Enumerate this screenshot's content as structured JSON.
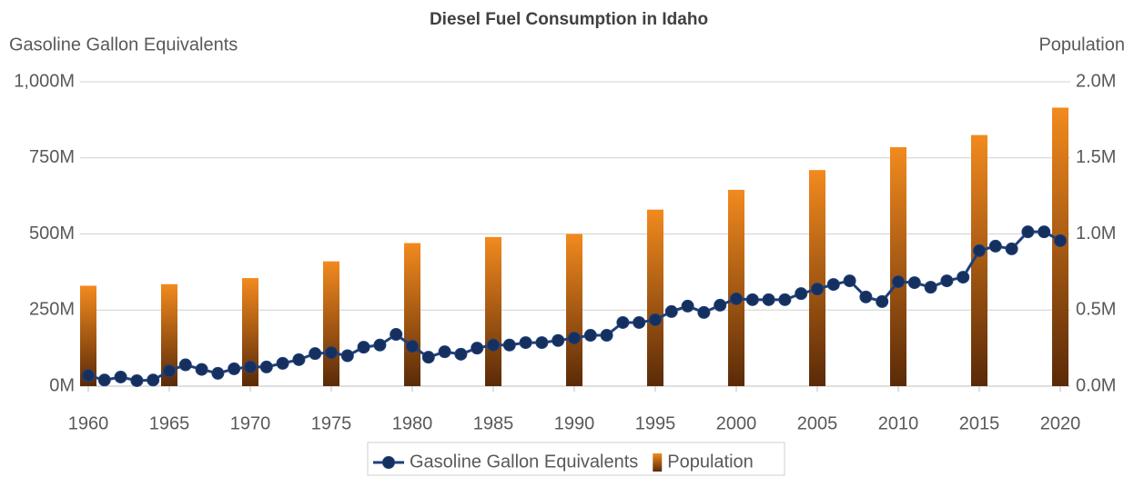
{
  "chart_data": {
    "type": "bar-line",
    "title": "Diesel Fuel Consumption in Idaho",
    "y_label": "Gasoline Gallon Equivalents",
    "y2_label": "Population",
    "x": [
      1960,
      1961,
      1962,
      1963,
      1964,
      1965,
      1966,
      1967,
      1968,
      1969,
      1970,
      1971,
      1972,
      1973,
      1974,
      1975,
      1976,
      1977,
      1978,
      1979,
      1980,
      1981,
      1982,
      1983,
      1984,
      1985,
      1986,
      1987,
      1988,
      1989,
      1990,
      1991,
      1992,
      1993,
      1994,
      1995,
      1996,
      1997,
      1998,
      1999,
      2000,
      2001,
      2002,
      2003,
      2004,
      2005,
      2006,
      2007,
      2008,
      2009,
      2010,
      2011,
      2012,
      2013,
      2014,
      2015,
      2016,
      2017,
      2018,
      2019,
      2020
    ],
    "xlim": [
      1960,
      2020
    ],
    "xticks": [
      1960,
      1965,
      1970,
      1975,
      1980,
      1985,
      1990,
      1995,
      2000,
      2005,
      2010,
      2015,
      2020
    ],
    "ylim": [
      0,
      1000000000
    ],
    "yticks": [
      {
        "value": 0,
        "label": "0M"
      },
      {
        "value": 250000000,
        "label": "250M"
      },
      {
        "value": 500000000,
        "label": "500M"
      },
      {
        "value": 750000000,
        "label": "750M"
      },
      {
        "value": 1000000000,
        "label": "1,000M"
      }
    ],
    "y2lim": [
      0,
      2000000
    ],
    "y2ticks": [
      {
        "value": 0,
        "label": "0.0M"
      },
      {
        "value": 500000,
        "label": "0.5M"
      },
      {
        "value": 1000000,
        "label": "1.0M"
      },
      {
        "value": 1500000,
        "label": "1.5M"
      },
      {
        "value": 2000000,
        "label": "2.0M"
      }
    ],
    "grid": true,
    "series": [
      {
        "name": "Gasoline Gallon Equivalents",
        "type": "line",
        "color": "#1f3f7a",
        "values": [
          35000000,
          20000000,
          30000000,
          18000000,
          20000000,
          50000000,
          70000000,
          55000000,
          42000000,
          57000000,
          63000000,
          63000000,
          75000000,
          87000000,
          107000000,
          110000000,
          100000000,
          128000000,
          135000000,
          170000000,
          131000000,
          95000000,
          113000000,
          105000000,
          125000000,
          135000000,
          135000000,
          143000000,
          143000000,
          150000000,
          158000000,
          167000000,
          167000000,
          209000000,
          209000000,
          218000000,
          245000000,
          263000000,
          242000000,
          266000000,
          287000000,
          284000000,
          284000000,
          284000000,
          304000000,
          319000000,
          334000000,
          346000000,
          293000000,
          278000000,
          343000000,
          340000000,
          325000000,
          346000000,
          358000000,
          445000000,
          460000000,
          451000000,
          507000000,
          507000000,
          478000000
        ]
      },
      {
        "name": "Population",
        "type": "bar",
        "axis": "y2",
        "color": "#f28a1e",
        "values": [
          660000,
          null,
          null,
          null,
          null,
          670000,
          null,
          null,
          null,
          null,
          710000,
          null,
          null,
          null,
          null,
          820000,
          null,
          null,
          null,
          null,
          940000,
          null,
          null,
          null,
          null,
          980000,
          null,
          null,
          null,
          null,
          1000000,
          null,
          null,
          null,
          null,
          1160000,
          null,
          null,
          null,
          null,
          1290000,
          null,
          null,
          null,
          null,
          1420000,
          null,
          null,
          null,
          null,
          1570000,
          null,
          null,
          null,
          null,
          1650000,
          null,
          null,
          null,
          null,
          1830000
        ]
      }
    ]
  }
}
